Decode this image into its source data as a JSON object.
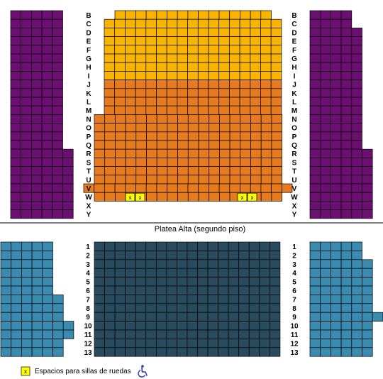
{
  "colors": {
    "purple": "#6b1070",
    "gold": "#f8b500",
    "orange": "#e67a1e",
    "blue": "#3b8bb0",
    "dark": "#2a4b5e",
    "wheelchair_spot": "#ffff00",
    "wheelchair_icon": "#2b3ea8",
    "grid": "#000000"
  },
  "upper": {
    "row_labels": [
      "B",
      "C",
      "D",
      "E",
      "F",
      "G",
      "H",
      "I",
      "J",
      "K",
      "L",
      "M",
      "N",
      "O",
      "P",
      "Q",
      "R",
      "S",
      "T",
      "U",
      "V",
      "W",
      "X",
      "Y"
    ],
    "center": {
      "gold_rows": [
        "B",
        "C",
        "D",
        "E",
        "F",
        "G",
        "H",
        "I"
      ],
      "orange_rows": [
        "J",
        "K",
        "L",
        "M",
        "N",
        "O",
        "P",
        "Q",
        "R",
        "S",
        "T",
        "U",
        "V",
        "W"
      ],
      "wheelchair_mark": "x"
    },
    "side_sections": {
      "color": "purple"
    }
  },
  "divider": {
    "title": "Platea Alta (segundo piso)"
  },
  "lower": {
    "row_labels": [
      "1",
      "2",
      "3",
      "4",
      "5",
      "6",
      "7",
      "8",
      "9",
      "10",
      "11",
      "12",
      "13"
    ],
    "center": {
      "color": "dark"
    },
    "side_sections": {
      "color": "blue"
    }
  },
  "legend": {
    "marker": "x",
    "text": "Espacios para sillas de ruedas",
    "icon": "wheelchair-icon"
  }
}
